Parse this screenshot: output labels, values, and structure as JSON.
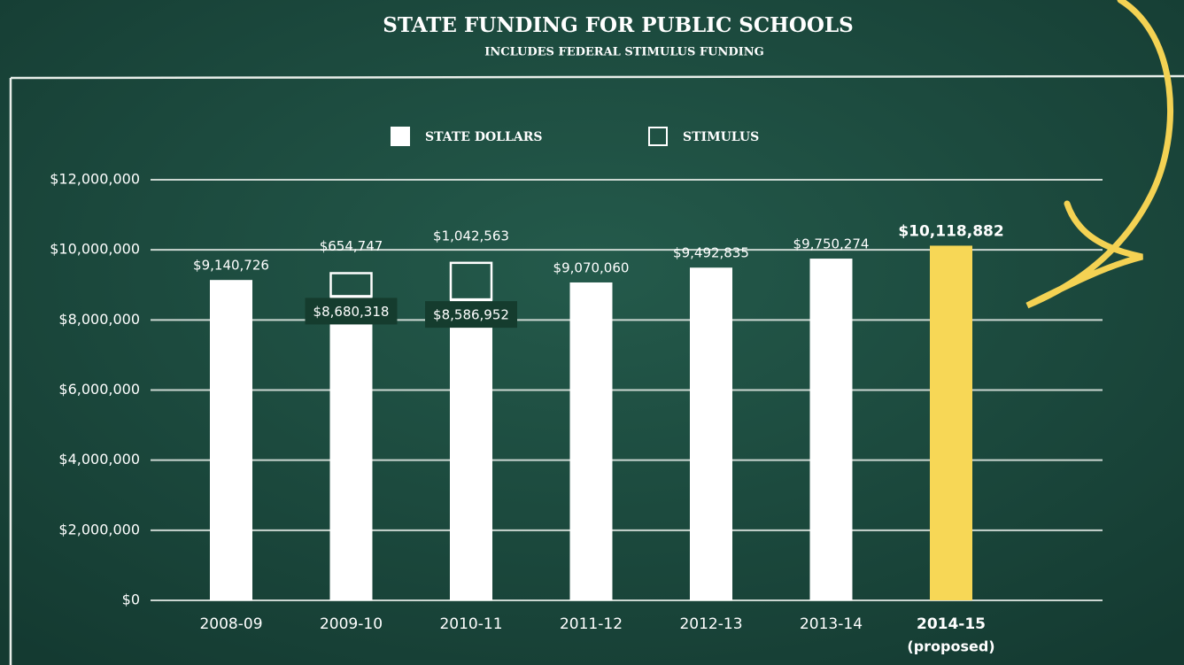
{
  "chart_data": {
    "type": "stacked-bar",
    "title": "STATE FUNDING FOR PUBLIC SCHOOLS",
    "subtitle": "INCLUDES FEDERAL STIMULUS FUNDING",
    "categories": [
      "2008-09",
      "2009-10",
      "2010-11",
      "2011-12",
      "2012-13",
      "2013-14",
      "2014-15"
    ],
    "category_notes": [
      null,
      null,
      null,
      null,
      null,
      null,
      "(proposed)"
    ],
    "series": [
      {
        "name": "STATE DOLLARS",
        "color": "#ffffff",
        "style": "solid",
        "colors": [
          "#ffffff",
          "#ffffff",
          "#ffffff",
          "#ffffff",
          "#ffffff",
          "#ffffff",
          "#f7d756"
        ],
        "values": [
          9140726,
          8680318,
          8586952,
          9070060,
          9492835,
          9750274,
          10118882
        ],
        "value_labels": [
          "$9,140,726",
          "$8,680,318",
          "$8,586,952",
          "$9,070,060",
          "$9,492,835",
          "$9,750,274",
          "$10,118,882"
        ]
      },
      {
        "name": "STIMULUS",
        "color": "#ffffff",
        "style": "outline",
        "values": [
          null,
          654747,
          1042563,
          null,
          null,
          null,
          null
        ],
        "value_labels": [
          null,
          "$654,747",
          "$1,042,563",
          null,
          null,
          null,
          null
        ]
      }
    ],
    "ylim": [
      0,
      12000000
    ],
    "yticks": [
      {
        "value": 0,
        "label": "$0"
      },
      {
        "value": 2000000,
        "label": "$2,000,000"
      },
      {
        "value": 4000000,
        "label": "$4,000,000"
      },
      {
        "value": 6000000,
        "label": "$6,000,000"
      },
      {
        "value": 8000000,
        "label": "$8,000,000"
      },
      {
        "value": 10000000,
        "label": "$10,000,000"
      },
      {
        "value": 12000000,
        "label": "$12,000,000"
      }
    ],
    "grid": true
  }
}
